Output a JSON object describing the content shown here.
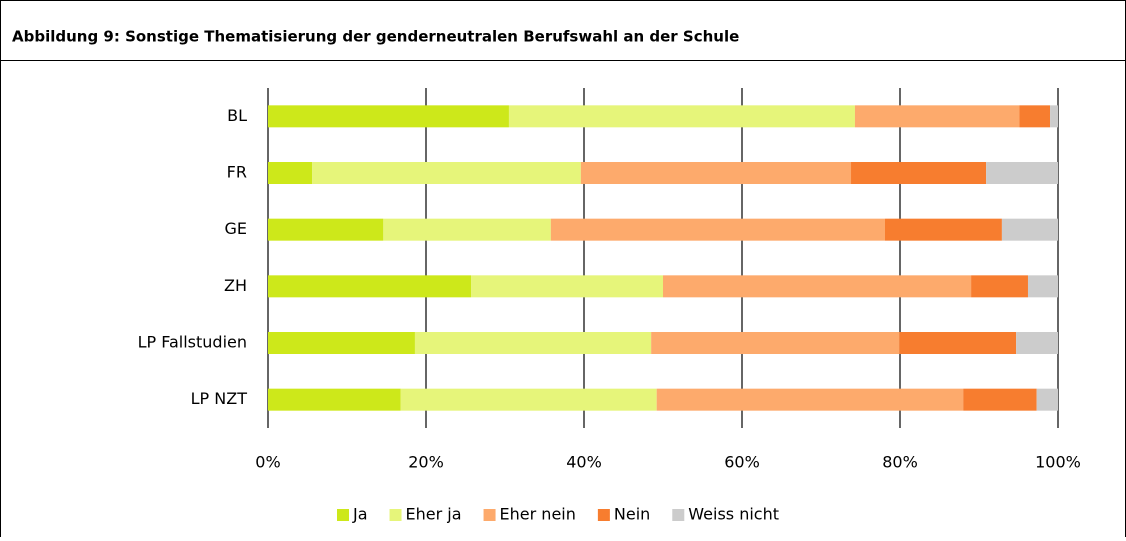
{
  "chart_data": {
    "type": "stacked-bar-horizontal",
    "title": "Abbildung 9: Sonstige Thematisierung der genderneutralen Berufswahl an der Schule",
    "categories": [
      "BL",
      "FR",
      "GE",
      "ZH",
      "LP Fallstudien",
      "LP NZT"
    ],
    "series": [
      {
        "name": "Ja",
        "color": "#cde81a",
        "values": [
          30.5,
          5.6,
          14.6,
          25.7,
          18.6,
          16.8
        ]
      },
      {
        "name": "Eher ja",
        "color": "#e6f57a",
        "values": [
          43.8,
          34.0,
          21.2,
          24.3,
          29.9,
          32.4
        ]
      },
      {
        "name": "Eher nein",
        "color": "#fdaa6c",
        "values": [
          20.8,
          34.2,
          42.3,
          39.0,
          31.4,
          38.8
        ]
      },
      {
        "name": "Nein",
        "color": "#f77d2f",
        "values": [
          3.9,
          17.1,
          14.8,
          7.2,
          14.8,
          9.3
        ]
      },
      {
        "name": "Weiss nicht",
        "color": "#cccccc",
        "values": [
          1.0,
          9.1,
          7.1,
          3.8,
          5.3,
          2.7
        ]
      }
    ],
    "xlim": [
      0,
      100
    ],
    "xticks": [
      {
        "value": 0,
        "label": "0%"
      },
      {
        "value": 20,
        "label": "20%"
      },
      {
        "value": 40,
        "label": "40%"
      },
      {
        "value": 60,
        "label": "60%"
      },
      {
        "value": 80,
        "label": "80%"
      },
      {
        "value": 100,
        "label": "100%"
      }
    ],
    "grid": true,
    "legend": "bottom"
  }
}
